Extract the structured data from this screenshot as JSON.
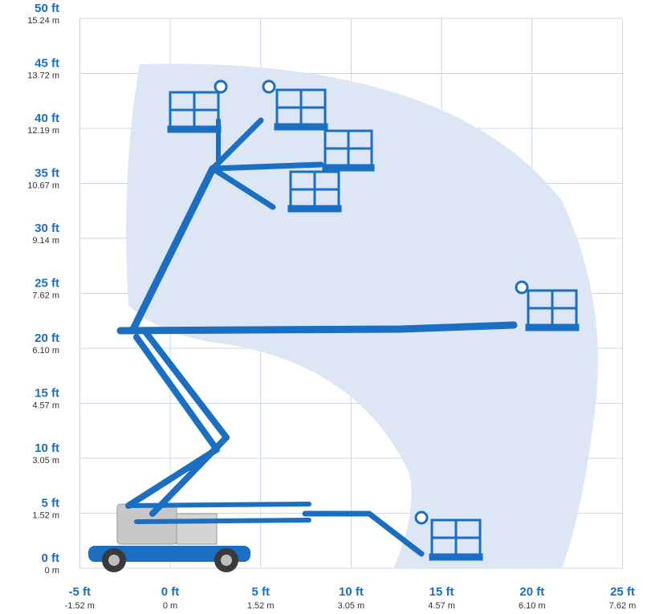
{
  "colors": {
    "accent": "#1a6fc2",
    "envelope": "#dde6f4",
    "grid": "#c9d8ee",
    "chassis_gray": "#c8c8c8"
  },
  "axes": {
    "x_range_ft": [
      -5,
      25
    ],
    "y_range_ft": [
      0,
      50
    ],
    "grid": true
  },
  "y_ticks": [
    {
      "value": 0,
      "ft": "0 ft",
      "m": "0 m"
    },
    {
      "value": 5,
      "ft": "5 ft",
      "m": "1.52 m"
    },
    {
      "value": 10,
      "ft": "10 ft",
      "m": "3.05 m"
    },
    {
      "value": 15,
      "ft": "15 ft",
      "m": "4.57 m"
    },
    {
      "value": 20,
      "ft": "20 ft",
      "m": "6.10 m"
    },
    {
      "value": 25,
      "ft": "25 ft",
      "m": "7.62 m"
    },
    {
      "value": 30,
      "ft": "30 ft",
      "m": "9.14 m"
    },
    {
      "value": 35,
      "ft": "35 ft",
      "m": "10.67 m"
    },
    {
      "value": 40,
      "ft": "40 ft",
      "m": "12.19 m"
    },
    {
      "value": 45,
      "ft": "45 ft",
      "m": "13.72 m"
    },
    {
      "value": 50,
      "ft": "50 ft",
      "m": "15.24 m"
    }
  ],
  "x_ticks": [
    {
      "value": -5,
      "ft": "-5 ft",
      "m": "-1.52 m"
    },
    {
      "value": 0,
      "ft": "0 ft",
      "m": "0 m"
    },
    {
      "value": 5,
      "ft": "5 ft",
      "m": "1.52 m"
    },
    {
      "value": 10,
      "ft": "10 ft",
      "m": "3.05 m"
    },
    {
      "value": 15,
      "ft": "15 ft",
      "m": "4.57 m"
    },
    {
      "value": 20,
      "ft": "20 ft",
      "m": "6.10 m"
    },
    {
      "value": 25,
      "ft": "25 ft",
      "m": "7.62 m"
    }
  ]
}
